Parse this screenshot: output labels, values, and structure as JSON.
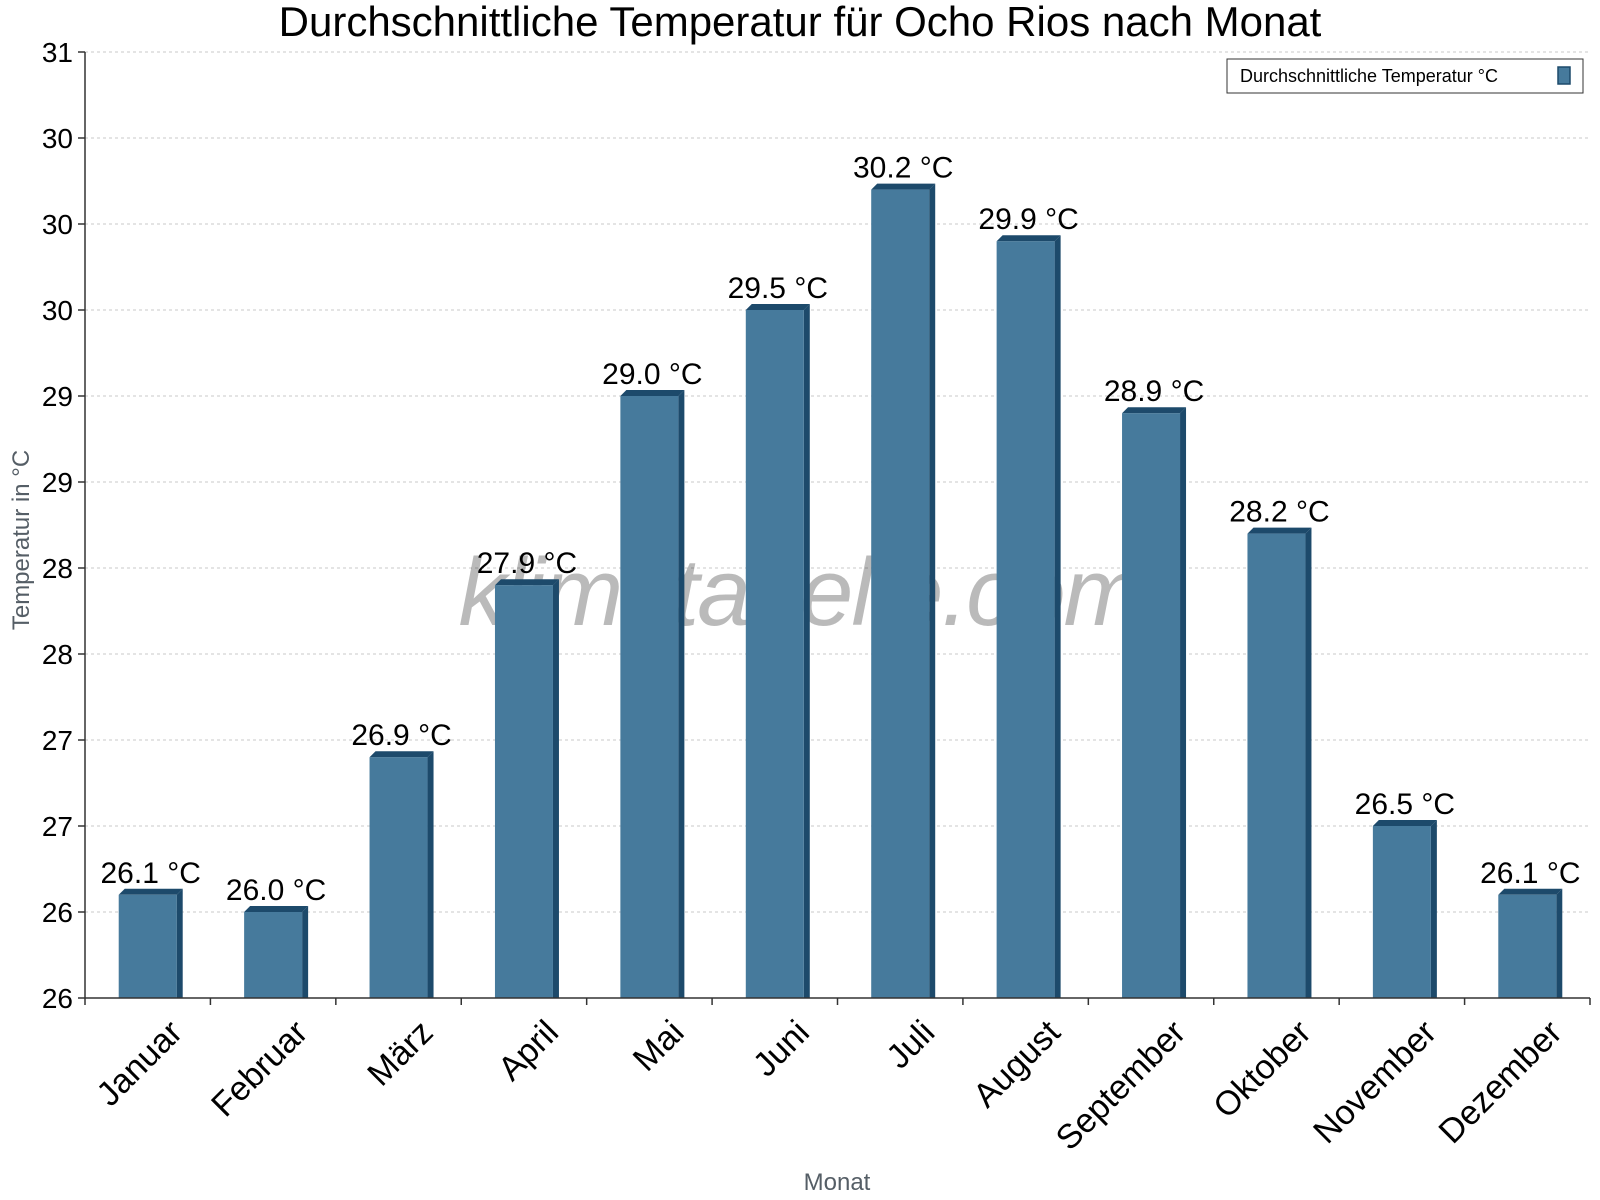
{
  "chart_data": {
    "type": "bar",
    "title": "Durchschnittliche Temperatur für Ocho Rios nach Monat",
    "xlabel": "Monat",
    "ylabel": "Temperatur in °C",
    "categories": [
      "Januar",
      "Februar",
      "März",
      "April",
      "Mai",
      "Juni",
      "Juli",
      "August",
      "September",
      "Oktober",
      "November",
      "Dezember"
    ],
    "series": [
      {
        "name": "Durchschnittliche Temperatur °C",
        "values": [
          26.1,
          26.0,
          26.9,
          27.9,
          29.0,
          29.5,
          30.2,
          29.9,
          28.9,
          28.2,
          26.5,
          26.1
        ],
        "labels": [
          "26.1 °C",
          "26.0 °C",
          "26.9 °C",
          "27.9 °C",
          "29.0 °C",
          "29.5 °C",
          "30.2 °C",
          "29.9 °C",
          "28.9 °C",
          "28.2 °C",
          "26.5 °C",
          "26.1 °C"
        ]
      }
    ],
    "ylim": [
      25.5,
      31.0
    ],
    "ytick_values": [
      25.5,
      26.0,
      26.5,
      27.0,
      27.5,
      28.0,
      28.5,
      29.0,
      29.5,
      30.0,
      30.5,
      31.0
    ],
    "ytick_labels": [
      "26",
      "26",
      "27",
      "27",
      "28",
      "28",
      "29",
      "29",
      "30",
      "30",
      "30",
      "31"
    ],
    "grid": true,
    "legend_position": "top-right",
    "watermark": "klimatabelle.com",
    "colors": {
      "bar": "#467a9c",
      "bar_edge": "#1d4a6b",
      "grid": "#c8c8c8",
      "axis": "#333333"
    }
  }
}
